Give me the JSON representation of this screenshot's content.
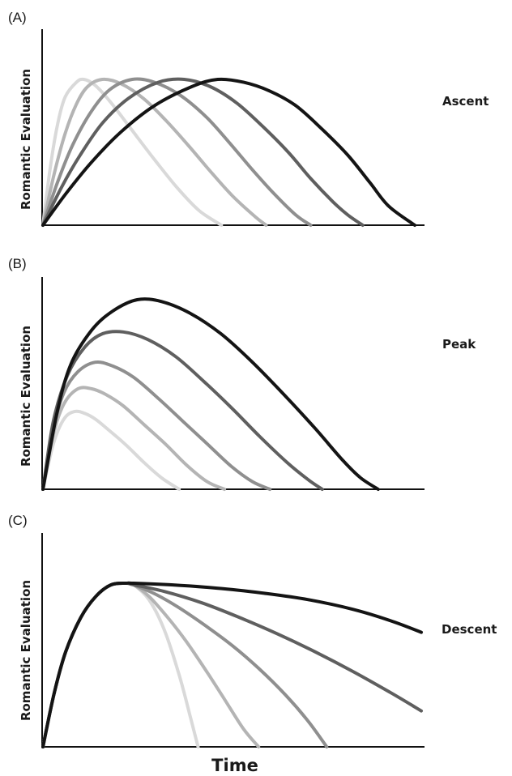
{
  "chart_data": [
    {
      "panel_label": "(A)",
      "side_label": "Ascent",
      "type": "line",
      "ylabel": "Romantic Evaluation",
      "xlabel": "",
      "xlim": [
        0,
        100
      ],
      "ylim": [
        0,
        100
      ],
      "series_colors": [
        "#d9d9d9",
        "#b4b4b4",
        "#8f8f8f",
        "#5f5f5f",
        "#141414"
      ],
      "series": [
        {
          "x": [
            0,
            2,
            4,
            6,
            9,
            11,
            14,
            18,
            24,
            30,
            36,
            42,
            48
          ],
          "y": [
            0,
            40,
            70,
            88,
            98,
            100,
            96,
            85,
            65,
            45,
            26,
            10,
            0
          ]
        },
        {
          "x": [
            0,
            3,
            6,
            9,
            12,
            16,
            21,
            27,
            33,
            39,
            45,
            51,
            57,
            60
          ],
          "y": [
            0,
            35,
            63,
            83,
            95,
            100,
            97,
            87,
            72,
            55,
            37,
            20,
            6,
            0
          ]
        },
        {
          "x": [
            0,
            4,
            8,
            13,
            18,
            24,
            30,
            37,
            44,
            50,
            56,
            62,
            68,
            72
          ],
          "y": [
            0,
            30,
            55,
            78,
            93,
            100,
            98,
            89,
            74,
            57,
            39,
            22,
            7,
            0
          ]
        },
        {
          "x": [
            0,
            5,
            10,
            16,
            23,
            31,
            38,
            45,
            52,
            59,
            66,
            72,
            78,
            82,
            86
          ],
          "y": [
            0,
            26,
            48,
            70,
            87,
            98,
            100,
            95,
            84,
            68,
            50,
            32,
            16,
            7,
            0
          ]
        },
        {
          "x": [
            0,
            6,
            13,
            21,
            30,
            40,
            47,
            54,
            61,
            68,
            75,
            82,
            88,
            93,
            100
          ],
          "y": [
            0,
            21,
            43,
            64,
            82,
            95,
            100,
            98,
            92,
            82,
            66,
            48,
            29,
            13,
            0
          ]
        }
      ]
    },
    {
      "panel_label": "(B)",
      "side_label": "Peak",
      "type": "line",
      "ylabel": "Romantic Evaluation",
      "xlabel": "",
      "xlim": [
        0,
        100
      ],
      "ylim": [
        0,
        100
      ],
      "series_colors": [
        "#d9d9d9",
        "#b4b4b4",
        "#8f8f8f",
        "#5f5f5f",
        "#141414"
      ],
      "series": [
        {
          "x": [
            0,
            3,
            6,
            9,
            12,
            15,
            19,
            24,
            29,
            34,
            39
          ],
          "y": [
            0,
            24,
            37,
            41,
            40,
            37,
            31,
            23,
            14,
            6,
            0
          ]
        },
        {
          "x": [
            0,
            3,
            6,
            10,
            14,
            18,
            23,
            29,
            35,
            41,
            47,
            52
          ],
          "y": [
            0,
            29,
            45,
            53,
            53,
            50,
            44,
            34,
            24,
            13,
            4,
            0
          ]
        },
        {
          "x": [
            0,
            3,
            6,
            10,
            15,
            20,
            26,
            33,
            40,
            47,
            54,
            60,
            65
          ],
          "y": [
            0,
            32,
            51,
            62,
            67,
            65,
            59,
            48,
            36,
            24,
            12,
            4,
            0
          ]
        },
        {
          "x": [
            0,
            3,
            7,
            12,
            17,
            23,
            30,
            38,
            46,
            54,
            62,
            70,
            76,
            80
          ],
          "y": [
            0,
            36,
            60,
            75,
            82,
            83,
            79,
            70,
            57,
            43,
            28,
            14,
            5,
            0
          ]
        },
        {
          "x": [
            0,
            4,
            8,
            14,
            20,
            27,
            34,
            42,
            51,
            60,
            69,
            78,
            86,
            91,
            96
          ],
          "y": [
            0,
            40,
            66,
            84,
            94,
            100,
            99,
            93,
            82,
            67,
            50,
            32,
            15,
            6,
            0
          ]
        }
      ]
    },
    {
      "panel_label": "(C)",
      "side_label": "Descent",
      "type": "line",
      "ylabel": "Romantic Evaluation",
      "xlabel": "Time",
      "xlim": [
        0,
        100
      ],
      "ylim": [
        0,
        100
      ],
      "series_colors": [
        "#d9d9d9",
        "#b4b4b4",
        "#8f8f8f",
        "#5f5f5f",
        "#141414"
      ],
      "series": [
        {
          "x": [
            0,
            3,
            6,
            10,
            14,
            18,
            22,
            24,
            28,
            32,
            36,
            39,
            41
          ],
          "y": [
            0,
            33,
            58,
            79,
            92,
            99,
            100,
            99,
            90,
            72,
            44,
            18,
            0
          ]
        },
        {
          "x": [
            0,
            3,
            6,
            10,
            14,
            18,
            22,
            24,
            28,
            33,
            38,
            43,
            48,
            53,
            57
          ],
          "y": [
            0,
            33,
            58,
            79,
            92,
            99,
            100,
            99,
            92,
            79,
            64,
            47,
            29,
            11,
            0
          ]
        },
        {
          "x": [
            0,
            3,
            6,
            10,
            14,
            18,
            22,
            24,
            30,
            36,
            43,
            50,
            57,
            64,
            70,
            75
          ],
          "y": [
            0,
            33,
            58,
            79,
            92,
            99,
            100,
            99,
            93,
            85,
            74,
            62,
            48,
            32,
            16,
            0
          ]
        },
        {
          "x": [
            0,
            3,
            6,
            10,
            14,
            18,
            22,
            24,
            32,
            42,
            52,
            62,
            72,
            82,
            92,
            100
          ],
          "y": [
            0,
            33,
            58,
            79,
            92,
            99,
            100,
            99,
            95,
            88,
            79,
            69,
            58,
            46,
            33,
            22
          ]
        },
        {
          "x": [
            0,
            3,
            6,
            10,
            14,
            18,
            22,
            24,
            34,
            46,
            58,
            70,
            82,
            92,
            100
          ],
          "y": [
            0,
            33,
            58,
            79,
            92,
            99,
            100,
            100,
            99,
            97,
            94,
            90,
            84,
            77,
            70
          ]
        }
      ]
    }
  ]
}
